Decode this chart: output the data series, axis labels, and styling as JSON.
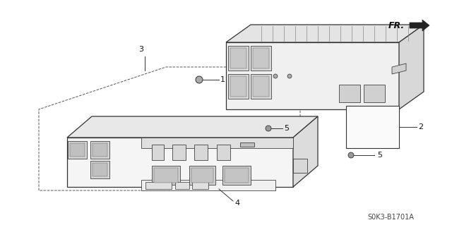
{
  "bg_color": "#ffffff",
  "line_color": "#333333",
  "text_color": "#111111",
  "part_number": "S0K3-B1701A",
  "fr_label": "FR.",
  "label_fontsize": 8,
  "part_fontsize": 7
}
